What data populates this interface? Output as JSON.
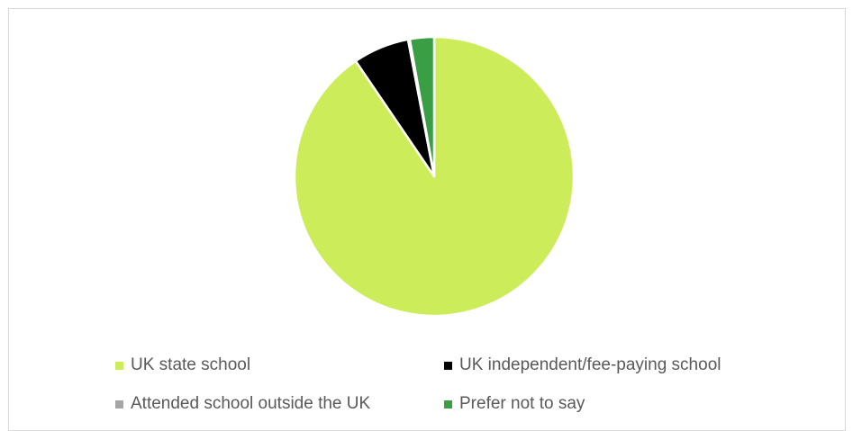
{
  "chart_data": {
    "type": "pie",
    "title": "",
    "categories": [
      "UK state school",
      "UK independent/fee-paying school",
      "Attended school outside the UK",
      "Prefer not to say"
    ],
    "values": [
      90.5,
      6.5,
      0.2,
      2.8
    ],
    "colors": [
      "#ccec5a",
      "#000000",
      "#a6a6a6",
      "#3a9e45"
    ],
    "legend_position": "bottom",
    "start_angle_deg": 0,
    "direction": "clockwise"
  }
}
